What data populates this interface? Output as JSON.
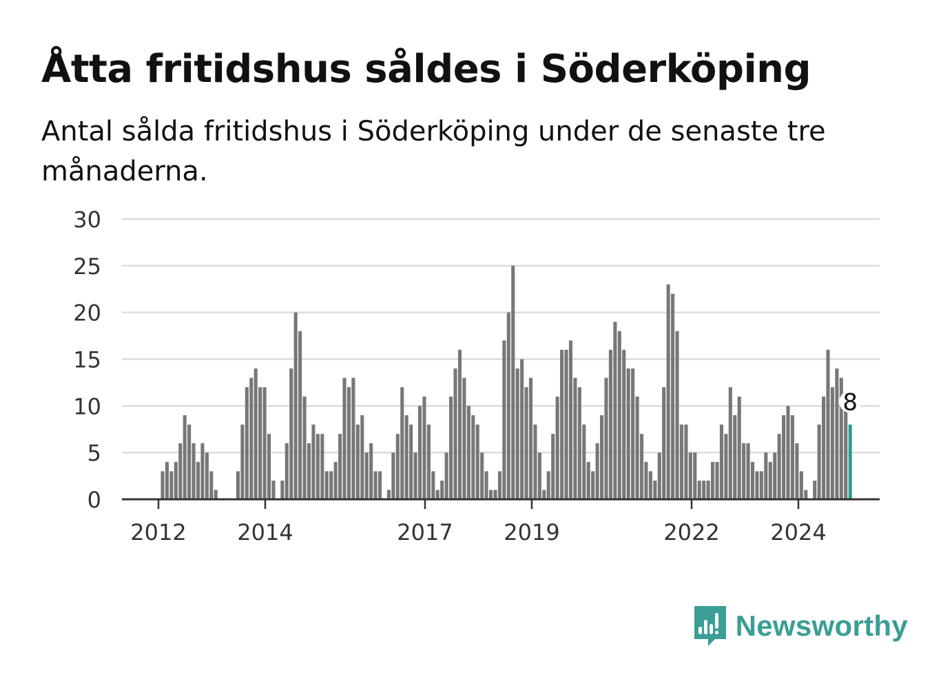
{
  "title": "Åtta fritidshus såldes i Söderköping",
  "subtitle": "Antal sålda fritidshus i Söderköping under de senaste tre månaderna.",
  "brand": {
    "name": "Newsworthy",
    "color": "#3a9e95",
    "icon": "newsworthy-bar-chart-icon"
  },
  "chart_data": {
    "type": "bar",
    "title": "Åtta fritidshus såldes i Söderköping",
    "xlabel": "",
    "ylabel": "",
    "ylim": [
      0,
      30
    ],
    "y_ticks": [
      0,
      5,
      10,
      15,
      20,
      25,
      30
    ],
    "x_tick_labels": [
      "2012",
      "2014",
      "2017",
      "2019",
      "2022",
      "2024"
    ],
    "grid": true,
    "colors": {
      "bar": "#77777b",
      "highlight": "#2a9d8f",
      "grid": "#dcdcdc",
      "axis": "#333333"
    },
    "callout": {
      "value": 8,
      "label": "8"
    },
    "series": [
      {
        "values": [
          0,
          3,
          4,
          3,
          4,
          6,
          9,
          8,
          6,
          4,
          6,
          5,
          3,
          1,
          0,
          0,
          0,
          0,
          3,
          8,
          12,
          13,
          14,
          12,
          12,
          7,
          2,
          0,
          2,
          6,
          14,
          20,
          18,
          11,
          6,
          8,
          7,
          7,
          3,
          3,
          4,
          7,
          13,
          12,
          13,
          8,
          9,
          5,
          6,
          3,
          3,
          0,
          1,
          5,
          7,
          12,
          9,
          8,
          5,
          10,
          11,
          8,
          3,
          1,
          2,
          5,
          11,
          14,
          16,
          13,
          10,
          9,
          8,
          5,
          3,
          1,
          1,
          3,
          17,
          20,
          25,
          14,
          15,
          12,
          13,
          8,
          5,
          1,
          3,
          7,
          11,
          16,
          16,
          17,
          13,
          12,
          8,
          4,
          3,
          6,
          9,
          13,
          16,
          19,
          18,
          16,
          14,
          14,
          11,
          7,
          4,
          3,
          2,
          5,
          12,
          23,
          22,
          18,
          8,
          8,
          5,
          5,
          2,
          2,
          2,
          4,
          4,
          8,
          7,
          12,
          9,
          11,
          6,
          6,
          4,
          3,
          3,
          5,
          4,
          5,
          7,
          9,
          10,
          9,
          6,
          3,
          1,
          0,
          2,
          8,
          11,
          16,
          12,
          14,
          13,
          11,
          8
        ]
      }
    ]
  }
}
